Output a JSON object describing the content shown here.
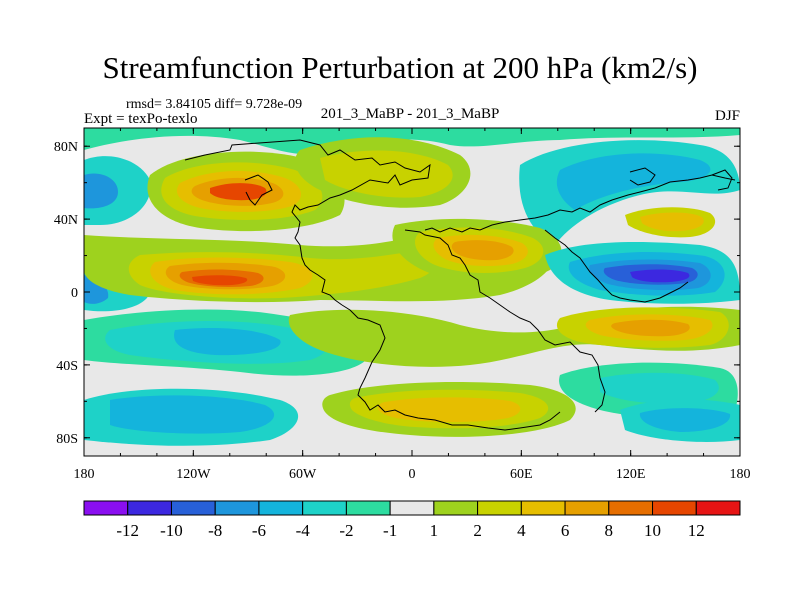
{
  "title": "Streamfunction Perturbation at 200 hPa (km2/s)",
  "stats": "rmsd= 3.84105 diff= 9.728e-09",
  "experiment": "Expt = texPo-texlo",
  "comparison": "201_3_MaBP - 201_3_MaBP",
  "season": "DJF",
  "map": {
    "x_axis": {
      "range": [
        -180,
        180
      ],
      "ticks": [
        {
          "value": -180,
          "label": "180"
        },
        {
          "value": -120,
          "label": "120W"
        },
        {
          "value": -60,
          "label": "60W"
        },
        {
          "value": 0,
          "label": "0"
        },
        {
          "value": 60,
          "label": "60E"
        },
        {
          "value": 120,
          "label": "120E"
        },
        {
          "value": 180,
          "label": "180"
        }
      ]
    },
    "y_axis": {
      "range": [
        -90,
        90
      ],
      "ticks": [
        {
          "value": 80,
          "label": "80N"
        },
        {
          "value": 40,
          "label": "40N"
        },
        {
          "value": 0,
          "label": "0"
        },
        {
          "value": -40,
          "label": "40S"
        },
        {
          "value": -80,
          "label": "80S"
        }
      ]
    }
  },
  "colorbar": {
    "colors": [
      "#8a0ff0",
      "#3c28e0",
      "#2860d8",
      "#1e96dc",
      "#14b4dc",
      "#1ed2c8",
      "#2ddca0",
      "#e8e8e8",
      "#9ed21e",
      "#c8d200",
      "#e6be00",
      "#e6a000",
      "#e66e00",
      "#e64600",
      "#e61414"
    ],
    "labels": [
      "-12",
      "-10",
      "-8",
      "-6",
      "-4",
      "-2",
      "-1",
      "1",
      "2",
      "4",
      "6",
      "8",
      "10",
      "12"
    ]
  },
  "field_blobs": [
    {
      "lon": -105,
      "lat": 55,
      "rx": 50,
      "ry": 20,
      "value": 6
    },
    {
      "lon": -100,
      "lat": 58,
      "rx": 30,
      "ry": 11,
      "value": 10
    },
    {
      "lon": -100,
      "lat": 8,
      "rx": 60,
      "ry": 17,
      "value": 6
    },
    {
      "lon": -102,
      "lat": 6,
      "rx": 30,
      "ry": 8,
      "value": 10
    },
    {
      "lon": -150,
      "lat": -55,
      "rx": 40,
      "ry": 12,
      "value": -4
    },
    {
      "lon": -25,
      "lat": 55,
      "rx": 45,
      "ry": 30,
      "value": 4
    },
    {
      "lon": 15,
      "lat": -65,
      "rx": 65,
      "ry": 15,
      "value": 4
    },
    {
      "lon": 45,
      "lat": 25,
      "rx": 50,
      "ry": 18,
      "value": 6
    },
    {
      "lon": 145,
      "lat": 10,
      "rx": 45,
      "ry": 15,
      "value": -8
    },
    {
      "lon": 150,
      "lat": 5,
      "rx": 25,
      "ry": 8,
      "value": -10
    },
    {
      "lon": 145,
      "lat": 40,
      "rx": 30,
      "ry": 10,
      "value": 4
    },
    {
      "lon": 140,
      "lat": -17,
      "rx": 50,
      "ry": 12,
      "value": 6
    }
  ]
}
